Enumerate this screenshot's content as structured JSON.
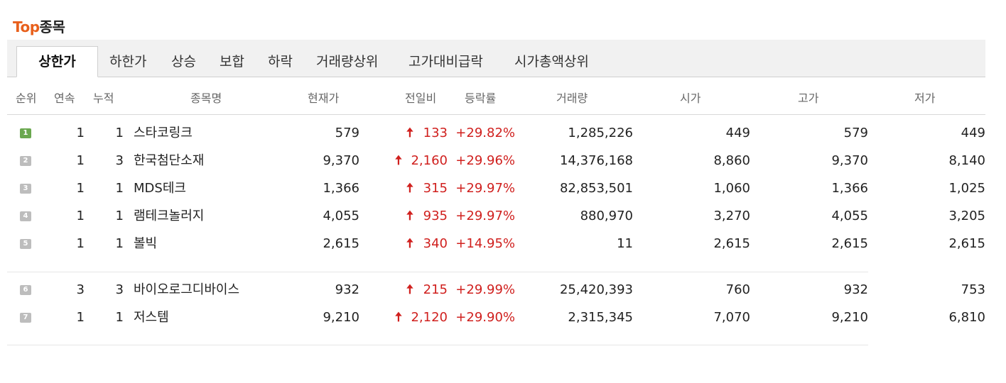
{
  "header": {
    "title_accent": "Top",
    "title_rest": "종목"
  },
  "tabs": [
    "상한가",
    "하한가",
    "상승",
    "보합",
    "하락",
    "거래량상위",
    "고가대비급락",
    "시가총액상위"
  ],
  "columns": [
    "순위",
    "연속",
    "누적",
    "종목명",
    "현재가",
    "전일비",
    "등락률",
    "거래량",
    "시가",
    "고가",
    "저가"
  ],
  "rows": [
    {
      "rank": "1",
      "consec": "1",
      "cum": "1",
      "name": "스타코링크",
      "price": "579",
      "change": "133",
      "rate": "+29.82%",
      "volume": "1,285,226",
      "open": "449",
      "high": "579",
      "low": "449"
    },
    {
      "rank": "2",
      "consec": "1",
      "cum": "3",
      "name": "한국첨단소재",
      "price": "9,370",
      "change": "2,160",
      "rate": "+29.96%",
      "volume": "14,376,168",
      "open": "8,860",
      "high": "9,370",
      "low": "8,140"
    },
    {
      "rank": "3",
      "consec": "1",
      "cum": "1",
      "name": "MDS테크",
      "price": "1,366",
      "change": "315",
      "rate": "+29.97%",
      "volume": "82,853,501",
      "open": "1,060",
      "high": "1,366",
      "low": "1,025"
    },
    {
      "rank": "4",
      "consec": "1",
      "cum": "1",
      "name": "램테크놀러지",
      "price": "4,055",
      "change": "935",
      "rate": "+29.97%",
      "volume": "880,970",
      "open": "3,270",
      "high": "4,055",
      "low": "3,205"
    },
    {
      "rank": "5",
      "consec": "1",
      "cum": "1",
      "name": "볼빅",
      "price": "2,615",
      "change": "340",
      "rate": "+14.95%",
      "volume": "11",
      "open": "2,615",
      "high": "2,615",
      "low": "2,615"
    },
    {
      "rank": "6",
      "consec": "3",
      "cum": "3",
      "name": "바이오로그디바이스",
      "price": "932",
      "change": "215",
      "rate": "+29.99%",
      "volume": "25,420,393",
      "open": "760",
      "high": "932",
      "low": "753"
    },
    {
      "rank": "7",
      "consec": "1",
      "cum": "1",
      "name": "저스템",
      "price": "9,210",
      "change": "2,120",
      "rate": "+29.90%",
      "volume": "2,315,345",
      "open": "7,070",
      "high": "9,210",
      "low": "6,810"
    }
  ],
  "icons": {
    "up_arrow": "arrow-up-icon",
    "rank_badge": "rank-badge-icon"
  },
  "colors": {
    "accent": "#e8601c",
    "up": "#d0201e",
    "first_badge": "#6aa84f",
    "badge": "#bdbdbd"
  }
}
